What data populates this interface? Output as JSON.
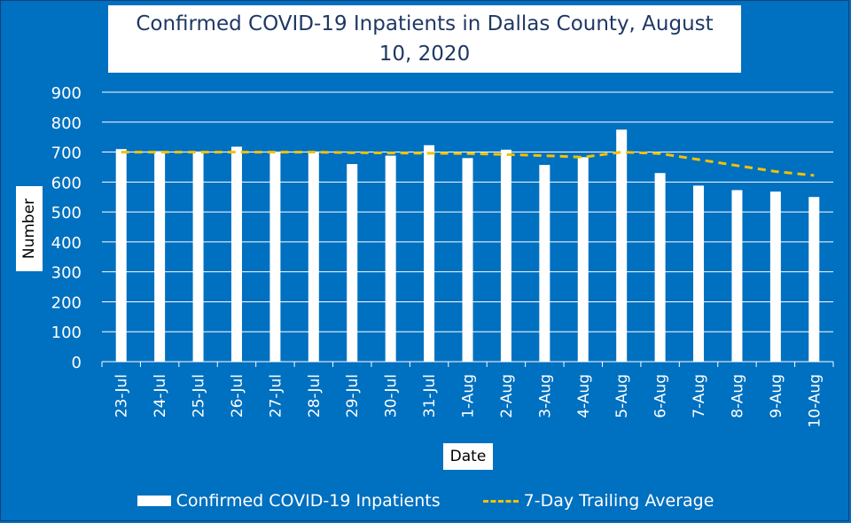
{
  "chart_data": {
    "type": "bar",
    "title": "Confirmed COVID-19 Inpatients in Dallas County, August 10, 2020",
    "xlabel": "Date",
    "ylabel": "Number",
    "ylim": [
      0,
      900
    ],
    "yticks": [
      0,
      100,
      200,
      300,
      400,
      500,
      600,
      700,
      800,
      900
    ],
    "grid": true,
    "legend_position": "bottom",
    "categories": [
      "23-Jul",
      "24-Jul",
      "25-Jul",
      "26-Jul",
      "27-Jul",
      "28-Jul",
      "29-Jul",
      "30-Jul",
      "31-Jul",
      "1-Aug",
      "2-Aug",
      "3-Aug",
      "4-Aug",
      "5-Aug",
      "6-Aug",
      "7-Aug",
      "8-Aug",
      "9-Aug",
      "10-Aug"
    ],
    "series": [
      {
        "name": "Confirmed COVID-19 Inpatients",
        "type": "bar",
        "color": "#ffffff",
        "values": [
          710,
          703,
          702,
          718,
          700,
          702,
          660,
          688,
          723,
          680,
          708,
          657,
          683,
          775,
          630,
          588,
          573,
          568,
          550
        ]
      },
      {
        "name": "7-Day Trailing Average",
        "type": "line",
        "style": "dashed",
        "color": "#f2c200",
        "values": [
          700,
          700,
          700,
          700,
          700,
          700,
          698,
          697,
          696,
          695,
          692,
          688,
          683,
          700,
          695,
          675,
          655,
          635,
          622
        ]
      }
    ]
  },
  "colors": {
    "background": "#0070c0",
    "bars": "#ffffff",
    "average_line": "#f2c200",
    "gridlines": "#ffffff"
  }
}
